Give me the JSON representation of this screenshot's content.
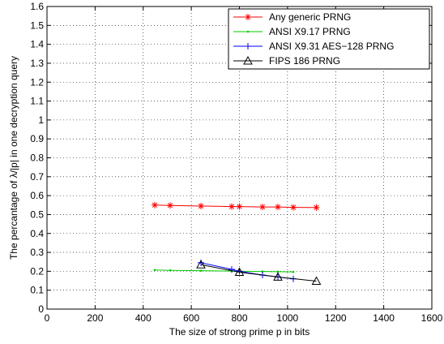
{
  "chart_data": {
    "type": "line",
    "xlabel": "The size of strong prime p in bits",
    "ylabel": "The percantage of λ/|p| in one decryption query",
    "xlim": [
      0,
      1600
    ],
    "ylim": [
      0,
      1.6
    ],
    "xticks": [
      0,
      200,
      400,
      600,
      800,
      1000,
      1200,
      1400,
      1600
    ],
    "xtick_labels": [
      "0",
      "200",
      "400",
      "600",
      "800",
      "1000",
      "1200",
      "1400",
      "1600"
    ],
    "yticks": [
      0,
      0.1,
      0.2,
      0.3,
      0.4,
      0.5,
      0.6,
      0.7,
      0.8,
      0.9,
      1,
      1.1,
      1.2,
      1.3,
      1.4,
      1.5,
      1.6
    ],
    "ytick_labels": [
      "0",
      "0.1",
      "0.2",
      "0.3",
      "0.4",
      "0.5",
      "0.6",
      "0.7",
      "0.8",
      "0.9",
      "1",
      "1.1",
      "1.2",
      "1.3",
      "1.4",
      "1.5",
      "1.6"
    ],
    "grid": true,
    "legend_position": "top-right",
    "series": [
      {
        "name": "Any generic PRNG",
        "color": "#ff0000",
        "marker": "star",
        "x": [
          448,
          512,
          640,
          768,
          800,
          896,
          960,
          1024,
          1120
        ],
        "y": [
          0.55,
          0.548,
          0.545,
          0.542,
          0.542,
          0.54,
          0.54,
          0.538,
          0.537
        ]
      },
      {
        "name": "ANSI X9.17 PRNG",
        "color": "#00cc00",
        "marker": "point",
        "x": [
          448,
          512,
          640,
          768,
          800,
          896,
          960,
          1024
        ],
        "y": [
          0.207,
          0.205,
          0.203,
          0.201,
          0.2,
          0.199,
          0.198,
          0.197
        ]
      },
      {
        "name": "ANSI X9.31 AES−128 PRNG",
        "color": "#0000ff",
        "marker": "plus",
        "x": [
          640,
          768,
          800,
          896,
          960,
          1024
        ],
        "y": [
          0.245,
          0.21,
          0.2,
          0.18,
          0.17,
          0.16
        ]
      },
      {
        "name": "FIPS 186 PRNG",
        "color": "#000000",
        "marker": "triangle",
        "x": [
          640,
          800,
          960,
          1120
        ],
        "y": [
          0.235,
          0.195,
          0.17,
          0.148
        ]
      }
    ]
  }
}
